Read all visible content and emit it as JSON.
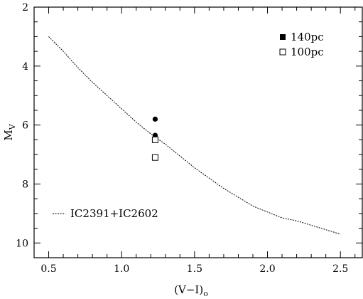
{
  "chart_data": {
    "type": "scatter",
    "xlabel": "(V−I)",
    "xlabel_sub": "o",
    "ylabel": "M",
    "ylabel_sub": "V",
    "xlim": [
      0.4,
      2.65
    ],
    "ylim": [
      10.5,
      2
    ],
    "y_inverted": true,
    "grid": false,
    "x_ticks": [
      0.5,
      1.0,
      1.5,
      2.0,
      2.5
    ],
    "x_tick_labels": [
      "0.5",
      "1.0",
      "1.5",
      "2.0",
      "2.5"
    ],
    "y_ticks": [
      2,
      4,
      6,
      8,
      10
    ],
    "y_tick_labels": [
      "2",
      "4",
      "6",
      "8",
      "10"
    ],
    "legend_placement": "top-right",
    "series": [
      {
        "name": "140pc",
        "marker": "filled-circle",
        "x": [
          1.23,
          1.23
        ],
        "y": [
          5.8,
          6.35
        ]
      },
      {
        "name": "100pc",
        "marker": "open-square",
        "x": [
          1.23,
          1.23
        ],
        "y": [
          6.5,
          7.1
        ]
      },
      {
        "name": "IC2391+IC2602",
        "marker": "dashed-line",
        "x": [
          0.5,
          0.6,
          0.7,
          0.8,
          0.9,
          1.0,
          1.1,
          1.2,
          1.3,
          1.4,
          1.5,
          1.6,
          1.7,
          1.8,
          1.9,
          2.0,
          2.1,
          2.2,
          2.3,
          2.4,
          2.5
        ],
        "y": [
          3.0,
          3.5,
          4.05,
          4.55,
          5.0,
          5.45,
          5.9,
          6.3,
          6.65,
          7.05,
          7.45,
          7.8,
          8.15,
          8.45,
          8.75,
          8.95,
          9.15,
          9.25,
          9.4,
          9.55,
          9.7
        ]
      }
    ]
  }
}
